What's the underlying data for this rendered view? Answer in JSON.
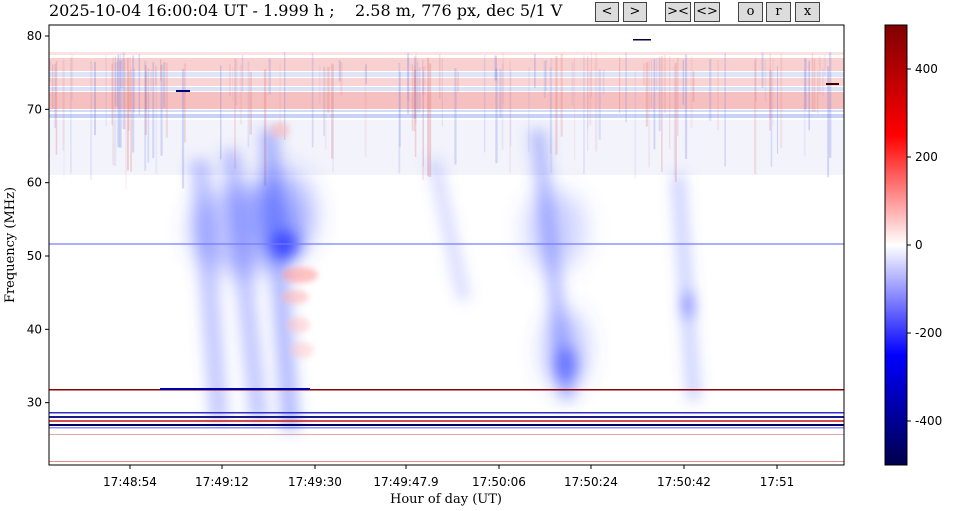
{
  "header": {
    "title": "2025-10-04 16:00:04 UT - 1.999 h ;    2.58 m, 776 px, dec 5/1 V",
    "buttons": {
      "prev": "<",
      "next": ">",
      "zoom_in": "><",
      "zoom_out": "<>",
      "o": "o",
      "r": "r",
      "x": "x"
    }
  },
  "chart_data": {
    "type": "heatmap",
    "xlabel": "Hour of day (UT)",
    "ylabel": "Frequency (MHz)",
    "x_tick_labels": [
      "17:48:54",
      "17:49:12",
      "17:49:30",
      "17:49:47.9",
      "17:50:06",
      "17:50:24",
      "17:50:42",
      "17:51"
    ],
    "y_ticks": [
      30,
      40,
      50,
      60,
      70,
      80
    ],
    "ylim": [
      21.5,
      81.5
    ],
    "colorbar": {
      "ticks": [
        400,
        200,
        0,
        -200,
        -400
      ],
      "range": [
        -500,
        500
      ],
      "colormap": "seismic"
    },
    "colors": {
      "negative": "#0000ff",
      "positive": "#ff0000",
      "dark_negative": "#00004c",
      "dark_positive": "#7f0000",
      "zero": "#ffffff"
    }
  }
}
